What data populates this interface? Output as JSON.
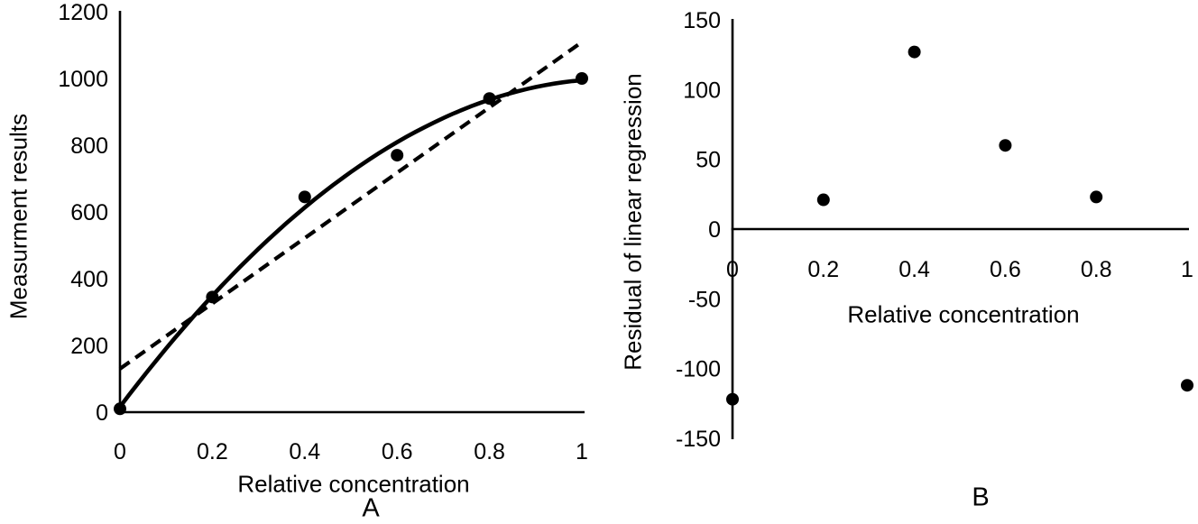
{
  "figure": {
    "background_color": "#ffffff",
    "ink_color": "#000000",
    "panel_a_label": "A",
    "panel_b_label": "B"
  },
  "chart_data": [
    {
      "id": "panel-a",
      "panel_label": "A",
      "type": "scatter",
      "title": "",
      "xlabel": "Relative concentration",
      "ylabel": "Measurment results",
      "x": [
        0,
        0.2,
        0.4,
        0.6,
        0.8,
        1
      ],
      "y": [
        10,
        345,
        645,
        770,
        940,
        1000
      ],
      "xlim": [
        0,
        1
      ],
      "ylim": [
        0,
        1200
      ],
      "xticks": [
        "0",
        "0.2",
        "0.4",
        "0.6",
        "0.8",
        "1"
      ],
      "yticks": [
        "0",
        "200",
        "400",
        "600",
        "800",
        "1000",
        "1200"
      ],
      "grid": false,
      "legend": "none",
      "marker_color": "#000000",
      "fits": [
        {
          "name": "polynomial-fit",
          "line_style": "solid",
          "poly_coeffs": [
            16,
            1836,
            -857
          ],
          "x_range": [
            0,
            1
          ]
        },
        {
          "name": "linear-fit",
          "line_style": "dashed",
          "intercept": 130,
          "slope": 979,
          "x_range": [
            0,
            1
          ]
        }
      ]
    },
    {
      "id": "panel-b",
      "panel_label": "B",
      "type": "scatter",
      "title": "",
      "xlabel": "Relative concentration",
      "ylabel": "Residual of linear regression",
      "x": [
        0,
        0.2,
        0.4,
        0.6,
        0.8,
        1
      ],
      "y": [
        -122,
        21,
        127,
        60,
        23,
        -112
      ],
      "xlim": [
        0,
        1
      ],
      "ylim": [
        -150,
        150
      ],
      "xticks": [
        "0",
        "0.2",
        "0.4",
        "0.6",
        "0.8",
        "1"
      ],
      "yticks": [
        "-150",
        "-100",
        "-50",
        "0",
        "50",
        "100",
        "150"
      ],
      "grid": false,
      "legend": "none",
      "marker_color": "#000000",
      "fits": []
    }
  ]
}
